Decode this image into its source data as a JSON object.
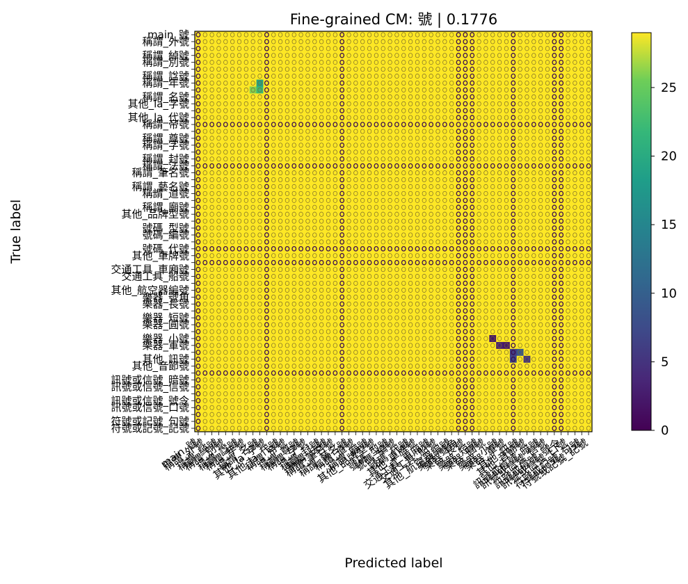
{
  "chart_data": {
    "type": "heatmap",
    "title": "Fine-grained CM: 號 | 0.1776",
    "xlabel": "Predicted label",
    "ylabel": "True label",
    "n_classes": 58,
    "colormap": "viridis",
    "color_range": [
      0,
      29
    ],
    "colorbar_ticks": [
      "0",
      "5",
      "10",
      "15",
      "20",
      "25"
    ],
    "visible_class_labels": [
      "main_號",
      "稱謂_外號",
      "稱謂_綽號",
      "稱謂_別號",
      "稱謂_諡號",
      "稱謂_年號",
      "稱謂_名號",
      "其他_la_字號",
      "其他_la_代號",
      "稱謂_帝號",
      "稱謂_尊號",
      "稱謂_字號",
      "稱謂_封號",
      "稱謂_法號",
      "稱謂_筆名號",
      "稱謂_藝名號",
      "稱謂_道號",
      "稱謂_廟號",
      "其他_品牌型號",
      "號碼_型號",
      "號碼_編號",
      "號碼_代號",
      "其他_車牌號",
      "交通工具_車廂號",
      "交通工具_船號",
      "其他_航空器編號",
      "樂器_號角",
      "樂器_長號",
      "樂器_短號",
      "樂器_圓號",
      "樂器_小號",
      "樂器_軍號",
      "其他_訊號",
      "其他_音節號",
      "訊號或信號_暗號",
      "訊號或信號_信號",
      "訊號或信號_號令",
      "訊號或信號_口號",
      "符號或記號_句號",
      "符號或記號_記號"
    ],
    "notable_cells": [
      {
        "true": 7,
        "pred": 9,
        "value": 19
      },
      {
        "true": 8,
        "pred": 9,
        "value": 22
      },
      {
        "true": 8,
        "pred": 8,
        "value": 26
      },
      {
        "true": 44,
        "pred": 43,
        "value": 2
      },
      {
        "true": 45,
        "pred": 44,
        "value": 3
      },
      {
        "true": 45,
        "pred": 45,
        "value": 2
      },
      {
        "true": 46,
        "pred": 46,
        "value": 6
      },
      {
        "true": 46,
        "pred": 47,
        "value": 9
      },
      {
        "true": 47,
        "pred": 46,
        "value": 7
      },
      {
        "true": 47,
        "pred": 48,
        "value": 5
      }
    ],
    "darker_columns": [
      0,
      10,
      21,
      38,
      39,
      40,
      46,
      52,
      53,
      58
    ],
    "darker_rows": [
      13,
      19,
      31,
      33,
      49
    ]
  }
}
